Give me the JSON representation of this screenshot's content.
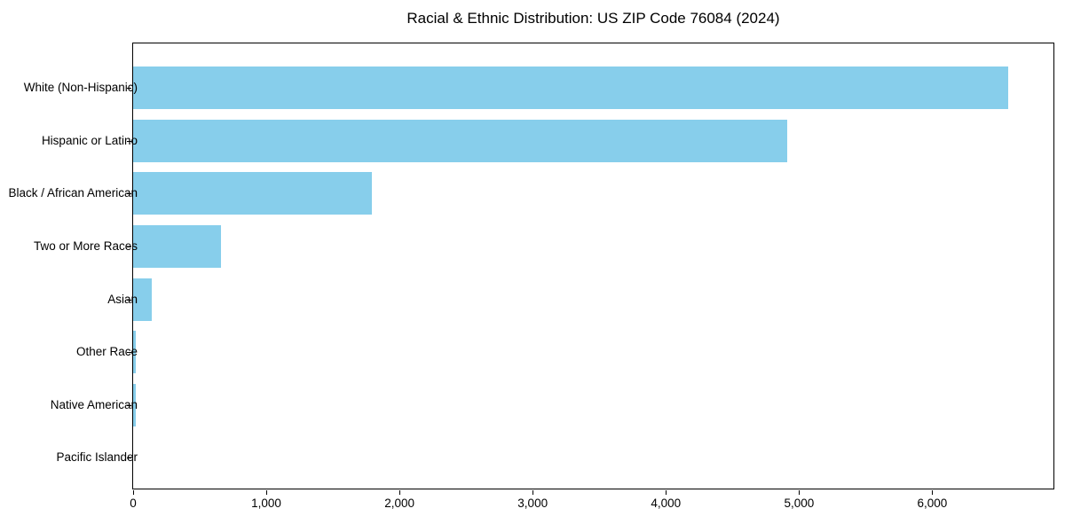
{
  "title": "Racial & Ethnic Distribution: US ZIP Code 76084 (2024)",
  "colors": {
    "bar": "#87CEEB",
    "text": "#000000",
    "spine": "#000000",
    "background": "#ffffff"
  },
  "chart_data": {
    "type": "bar",
    "orientation": "horizontal",
    "title": "Racial & Ethnic Distribution: US ZIP Code 76084 (2024)",
    "xlabel": "",
    "ylabel": "",
    "categories": [
      "White (Non-Hispanic)",
      "Hispanic or Latino",
      "Black / African American",
      "Two or More Races",
      "Asian",
      "Other Race",
      "Native American",
      "Pacific Islander"
    ],
    "values": [
      6570,
      4910,
      1790,
      660,
      140,
      20,
      20,
      0
    ],
    "bar_color": "#87CEEB",
    "xlim": [
      0,
      6910
    ],
    "x_ticks": [
      0,
      1000,
      2000,
      3000,
      4000,
      5000,
      6000
    ],
    "x_tick_labels": [
      "0",
      "1,000",
      "2,000",
      "3,000",
      "4,000",
      "5,000",
      "6,000"
    ],
    "grid": false,
    "legend": false,
    "sorted": "descending"
  }
}
